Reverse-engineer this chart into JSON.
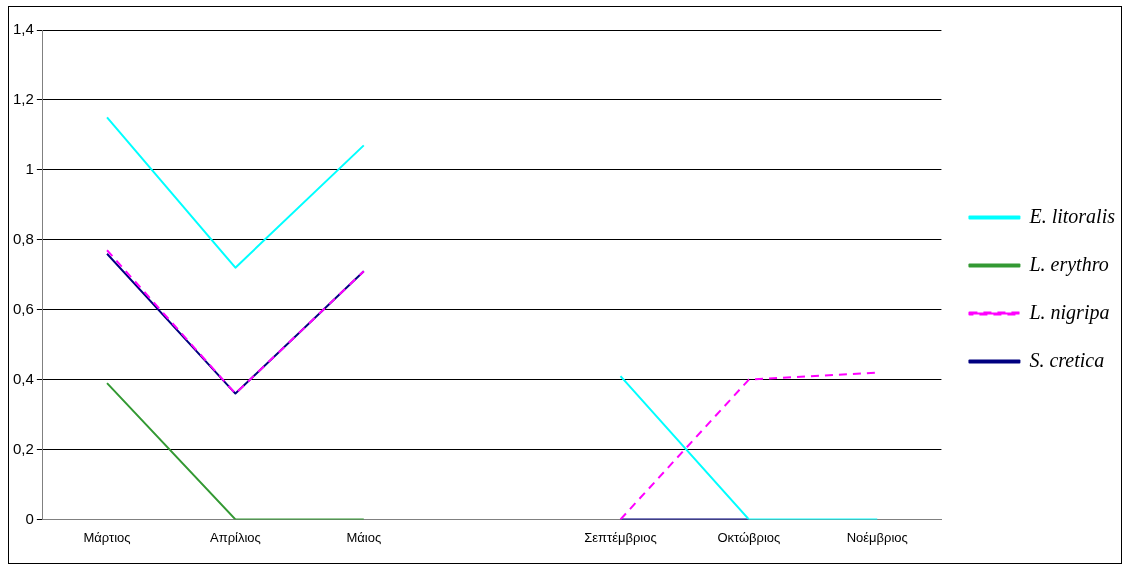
{
  "chart_data": {
    "type": "line",
    "categories": [
      "Μάρτιος",
      "Απρίλιος",
      "Μάιος",
      null,
      "Σεπτέμβριος",
      "Οκτώβριος",
      "Νοέμβριος"
    ],
    "series": [
      {
        "name": "S. cretica",
        "color": "#000080",
        "values": [
          0.76,
          0.36,
          0.71,
          null,
          0,
          0,
          null
        ]
      },
      {
        "name": "L. nigripa",
        "color": "#ff00ff",
        "line_style": "dashed",
        "values": [
          0.77,
          0.36,
          0.71,
          null,
          0,
          0.4,
          0.42
        ]
      },
      {
        "name": "L. erythro",
        "color": "#339933",
        "values": [
          0.39,
          0,
          0,
          null,
          null,
          null,
          null
        ]
      },
      {
        "name": "E. litoralis",
        "color": "#00ffff",
        "values": [
          1.15,
          0.72,
          1.07,
          null,
          0.41,
          0,
          0
        ]
      }
    ],
    "ylim": [
      0,
      1.4
    ],
    "yticks": [
      {
        "value": 0,
        "label": "0"
      },
      {
        "value": 0.2,
        "label": "0,2"
      },
      {
        "value": 0.4,
        "label": "0,4"
      },
      {
        "value": 0.6,
        "label": "0,6"
      },
      {
        "value": 0.8,
        "label": "0,8"
      },
      {
        "value": 1,
        "label": "1"
      },
      {
        "value": 1.2,
        "label": "1,2"
      },
      {
        "value": 1.4,
        "label": "1,4"
      }
    ],
    "grid": "y",
    "legend": "right",
    "marker": "none"
  }
}
